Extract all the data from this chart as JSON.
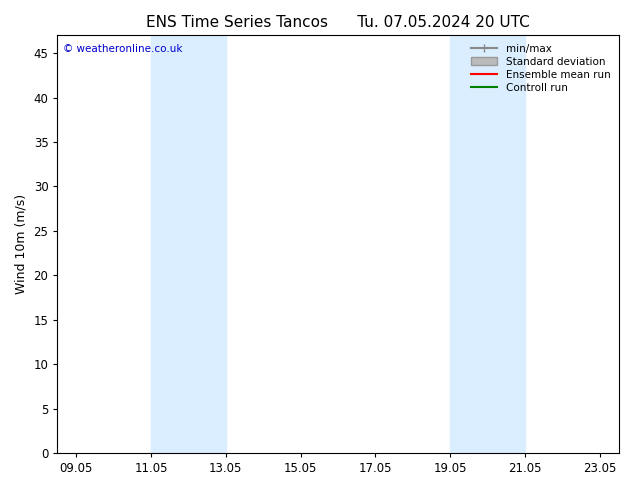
{
  "title": "ENS Time Series Tancos      Tu. 07.05.2024 20 UTC",
  "ylabel": "Wind 10m (m/s)",
  "ylim": [
    0,
    47
  ],
  "yticks": [
    0,
    5,
    10,
    15,
    20,
    25,
    30,
    35,
    40,
    45
  ],
  "xlim_dates": [
    "09.05",
    "23.05"
  ],
  "xtick_labels": [
    "09.05",
    "11.05",
    "13.05",
    "15.05",
    "17.05",
    "19.05",
    "21.05",
    "23.05"
  ],
  "xtick_positions": [
    0,
    2,
    4,
    6,
    8,
    10,
    12,
    14
  ],
  "shaded_bands": [
    {
      "x_start": 2,
      "x_end": 4
    },
    {
      "x_start": 10,
      "x_end": 12
    }
  ],
  "band_color": "#daeeff",
  "copyright_text": "© weatheronline.co.uk",
  "copyright_color": "#0000cc",
  "legend_items": [
    {
      "label": "min/max",
      "color": "#888888",
      "lw": 1.5
    },
    {
      "label": "Standard deviation",
      "color": "#bbbbbb",
      "lw": 6
    },
    {
      "label": "Ensemble mean run",
      "color": "#ff0000",
      "lw": 1.5
    },
    {
      "label": "Controll run",
      "color": "#008000",
      "lw": 1.5
    }
  ],
  "background_color": "#ffffff",
  "title_fontsize": 11,
  "axis_label_fontsize": 9,
  "tick_fontsize": 8.5
}
